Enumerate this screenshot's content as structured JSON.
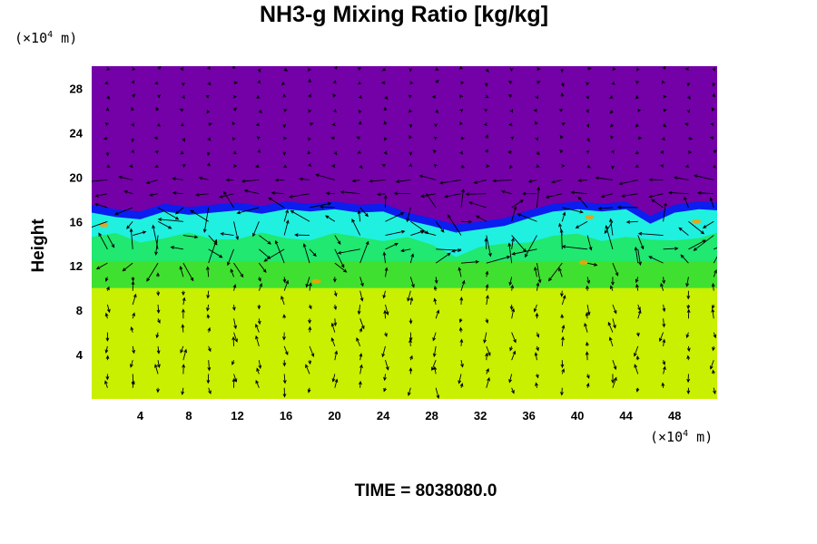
{
  "chart_data": {
    "type": "heatmap",
    "title": "NH3-g Mixing Ratio [kg/kg]",
    "ylabel": "Height",
    "xlabel": "",
    "x_unit": {
      "prefix": "(×10",
      "exp": "4",
      "suffix": " m)"
    },
    "y_unit": {
      "prefix": "(×10",
      "exp": "4",
      "suffix": " m)"
    },
    "xlim": [
      0,
      51.5
    ],
    "ylim": [
      0,
      30
    ],
    "x_ticks": [
      4,
      8,
      12,
      16,
      20,
      24,
      28,
      32,
      36,
      40,
      44,
      48
    ],
    "y_ticks": [
      4,
      8,
      12,
      16,
      20,
      24,
      28
    ],
    "colors": {
      "upper": "#7400a8",
      "boundary": "#0a1ef0",
      "mixed_cyan": "#20f0e0",
      "mixed_green": "#20e870",
      "lower_green": "#40e030",
      "lower": "#c8f000",
      "highlight": "#ff9c00"
    },
    "layers": {
      "lower_top": 10,
      "mixed_bottom": 11.5,
      "cloud_top_profile": [
        [
          0,
          16.8
        ],
        [
          2,
          16.4
        ],
        [
          4,
          16.2
        ],
        [
          6,
          16.9
        ],
        [
          8,
          16.6
        ],
        [
          10,
          16.8
        ],
        [
          12,
          17.0
        ],
        [
          14,
          16.7
        ],
        [
          16,
          17.1
        ],
        [
          18,
          16.9
        ],
        [
          20,
          17.1
        ],
        [
          22,
          16.8
        ],
        [
          24,
          16.9
        ],
        [
          26,
          16.1
        ],
        [
          28,
          15.6
        ],
        [
          30,
          15.0
        ],
        [
          32,
          15.3
        ],
        [
          34,
          15.6
        ],
        [
          36,
          16.3
        ],
        [
          38,
          16.9
        ],
        [
          40,
          17.1
        ],
        [
          42,
          16.9
        ],
        [
          44,
          17.1
        ],
        [
          46,
          15.8
        ],
        [
          48,
          16.8
        ],
        [
          50,
          17.1
        ],
        [
          51.5,
          17.0
        ]
      ]
    },
    "wind_arrows": "quiver field of velocity vectors over the whole domain",
    "time_label": "TIME = 8038080.0"
  }
}
